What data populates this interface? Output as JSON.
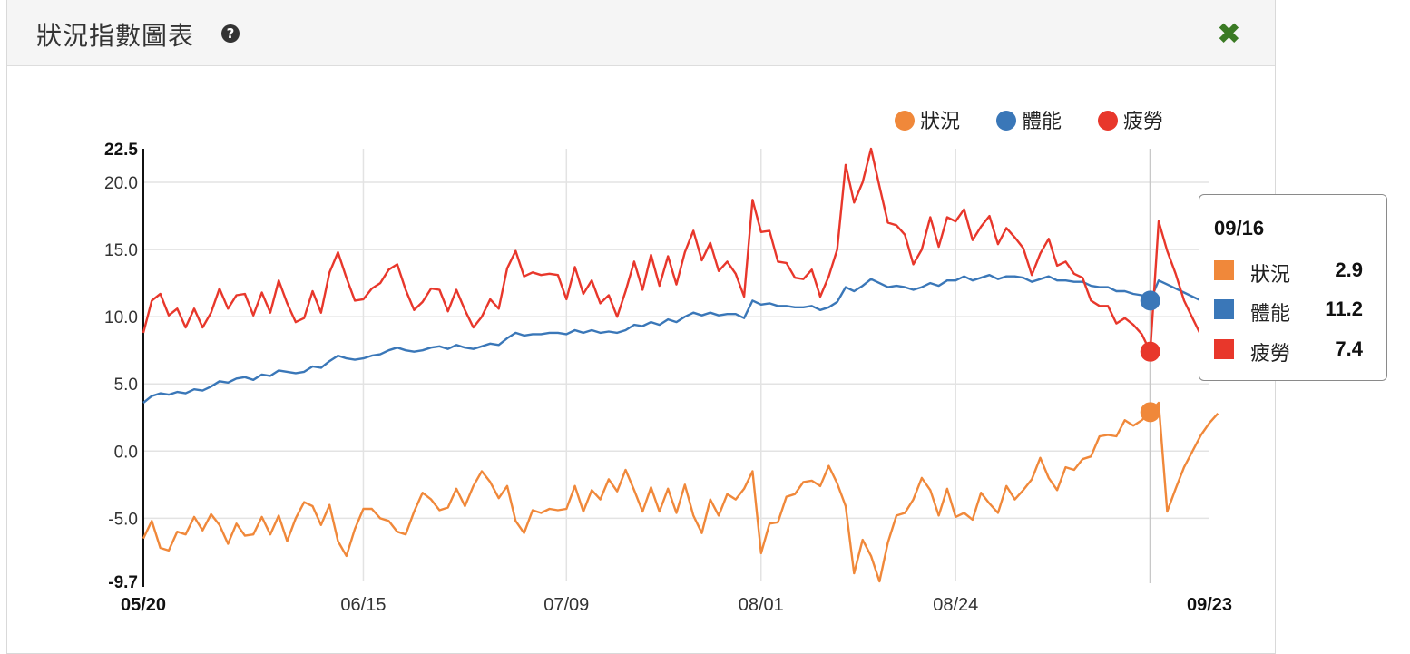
{
  "panel": {
    "title": "狀況指數圖表",
    "help_icon": "question-circle-icon",
    "close_icon": "close-x-icon",
    "close_symbol": "✖",
    "help_symbol": "?"
  },
  "colors": {
    "condition": "#f0883a",
    "fitness": "#3a77b8",
    "fatigue": "#e8372b"
  },
  "tooltip": {
    "date": "09/16",
    "rows": [
      {
        "name": "狀況",
        "value": "2.9",
        "color": "#f0883a"
      },
      {
        "name": "體能",
        "value": "11.2",
        "color": "#3a77b8"
      },
      {
        "name": "疲勞",
        "value": "7.4",
        "color": "#e8372b"
      }
    ]
  },
  "chart_data": {
    "type": "line",
    "title": "",
    "xlabel": "",
    "ylabel": "",
    "ylim": [
      -9.7,
      22.5
    ],
    "y_ticks": [
      "22.5",
      "20.0",
      "15.0",
      "10.0",
      "5.0",
      "0.0",
      "-5.0",
      "-9.7"
    ],
    "x_ticks": [
      "05/20",
      "06/15",
      "07/09",
      "08/01",
      "08/24",
      "09/23"
    ],
    "x_tick_days": [
      0,
      26,
      50,
      73,
      96,
      126
    ],
    "legend_position": "top-right",
    "grid": true,
    "crosshair_day": 119,
    "series": [
      {
        "name": "狀況",
        "values": [
          -6.5,
          -5.2,
          -7.2,
          -7.4,
          -6.0,
          -6.2,
          -4.9,
          -5.9,
          -4.7,
          -5.5,
          -6.9,
          -5.4,
          -6.3,
          -6.2,
          -4.9,
          -6.2,
          -4.8,
          -6.7,
          -5.0,
          -3.8,
          -4.1,
          -5.5,
          -4.0,
          -6.7,
          -7.8,
          -5.8,
          -4.3,
          -4.3,
          -5.0,
          -5.2,
          -6.0,
          -6.2,
          -4.5,
          -3.1,
          -3.6,
          -4.4,
          -4.2,
          -2.8,
          -4.1,
          -2.6,
          -1.5,
          -2.3,
          -3.5,
          -2.6,
          -5.2,
          -6.1,
          -4.4,
          -4.6,
          -4.3,
          -4.4,
          -4.3,
          -2.6,
          -4.5,
          -2.9,
          -3.6,
          -2.1,
          -3.0,
          -1.4,
          -2.9,
          -4.5,
          -2.7,
          -4.5,
          -2.8,
          -4.6,
          -2.5,
          -4.8,
          -6.1,
          -3.6,
          -4.8,
          -3.2,
          -3.6,
          -2.8,
          -1.5,
          -7.6,
          -5.4,
          -5.3,
          -3.4,
          -3.2,
          -2.3,
          -2.2,
          -2.6,
          -1.1,
          -2.4,
          -4.1,
          -9.1,
          -6.6,
          -7.8,
          -9.7,
          -6.8,
          -4.8,
          -4.6,
          -3.6,
          -2.0,
          -2.9,
          -4.8,
          -2.8,
          -4.9,
          -4.6,
          -5.1,
          -3.1,
          -3.9,
          -4.6,
          -2.6,
          -3.6,
          -2.9,
          -2.1,
          -0.5,
          -2.0,
          -2.9,
          -1.2,
          -1.4,
          -0.6,
          -0.4,
          1.1,
          1.2,
          1.1,
          2.3,
          1.9,
          2.3,
          2.9,
          3.6,
          -4.5,
          -2.8,
          -1.2,
          0.0,
          1.2,
          2.1,
          2.8
        ]
      },
      {
        "name": "體能",
        "values": [
          3.6,
          4.1,
          4.3,
          4.2,
          4.4,
          4.3,
          4.6,
          4.5,
          4.8,
          5.2,
          5.1,
          5.4,
          5.5,
          5.3,
          5.7,
          5.6,
          6.0,
          5.9,
          5.8,
          5.9,
          6.3,
          6.2,
          6.7,
          7.1,
          6.9,
          6.8,
          6.9,
          7.1,
          7.2,
          7.5,
          7.7,
          7.5,
          7.4,
          7.5,
          7.7,
          7.8,
          7.6,
          7.9,
          7.7,
          7.6,
          7.8,
          8.0,
          7.9,
          8.4,
          8.8,
          8.6,
          8.7,
          8.7,
          8.8,
          8.8,
          8.7,
          9.0,
          8.8,
          9.0,
          8.8,
          8.9,
          8.8,
          9.0,
          9.4,
          9.3,
          9.6,
          9.4,
          9.8,
          9.6,
          10.0,
          10.3,
          10.1,
          10.3,
          10.1,
          10.2,
          10.2,
          9.9,
          11.2,
          10.9,
          11.0,
          10.8,
          10.8,
          10.7,
          10.7,
          10.8,
          10.5,
          10.7,
          11.1,
          12.2,
          11.9,
          12.3,
          12.8,
          12.5,
          12.2,
          12.3,
          12.2,
          12.0,
          12.2,
          12.5,
          12.3,
          12.7,
          12.7,
          13.0,
          12.7,
          12.9,
          13.1,
          12.8,
          13.0,
          13.0,
          12.9,
          12.6,
          12.8,
          13.0,
          12.7,
          12.7,
          12.6,
          12.6,
          12.3,
          12.2,
          12.2,
          11.9,
          11.9,
          11.7,
          11.6,
          11.2,
          12.7,
          12.4,
          12.1,
          11.8,
          11.5,
          11.2,
          10.9
        ]
      },
      {
        "name": "疲勞",
        "values": [
          8.8,
          11.2,
          11.7,
          10.1,
          10.6,
          9.2,
          10.6,
          9.2,
          10.3,
          12.1,
          10.6,
          11.6,
          11.7,
          10.1,
          11.8,
          10.3,
          12.7,
          11.0,
          9.6,
          9.9,
          11.9,
          10.3,
          13.3,
          14.8,
          12.9,
          11.2,
          11.3,
          12.1,
          12.5,
          13.5,
          13.9,
          12.0,
          10.5,
          11.1,
          12.1,
          12.0,
          10.4,
          12.0,
          10.5,
          9.2,
          10.0,
          11.3,
          10.6,
          13.6,
          14.9,
          13.0,
          13.3,
          13.1,
          13.2,
          13.1,
          11.3,
          13.7,
          11.7,
          12.7,
          11.0,
          11.6,
          10.0,
          11.9,
          14.1,
          12.0,
          14.6,
          12.3,
          14.5,
          12.4,
          14.8,
          16.4,
          14.2,
          15.5,
          13.4,
          14.1,
          13.2,
          11.5,
          18.7,
          16.3,
          16.4,
          14.1,
          14.0,
          12.9,
          12.8,
          13.5,
          11.5,
          13.0,
          15.0,
          21.3,
          18.5,
          20.0,
          22.5,
          19.7,
          17.0,
          16.8,
          16.1,
          13.9,
          15.0,
          17.4,
          15.2,
          17.4,
          17.1,
          18.0,
          15.7,
          16.7,
          17.5,
          15.4,
          16.6,
          15.9,
          15.1,
          13.1,
          14.7,
          15.8,
          13.8,
          14.1,
          13.2,
          12.9,
          11.2,
          10.8,
          10.8,
          9.5,
          9.9,
          9.4,
          8.7,
          7.4,
          17.1,
          14.9,
          13.2,
          11.2,
          9.9,
          8.6,
          7.7
        ]
      }
    ]
  }
}
